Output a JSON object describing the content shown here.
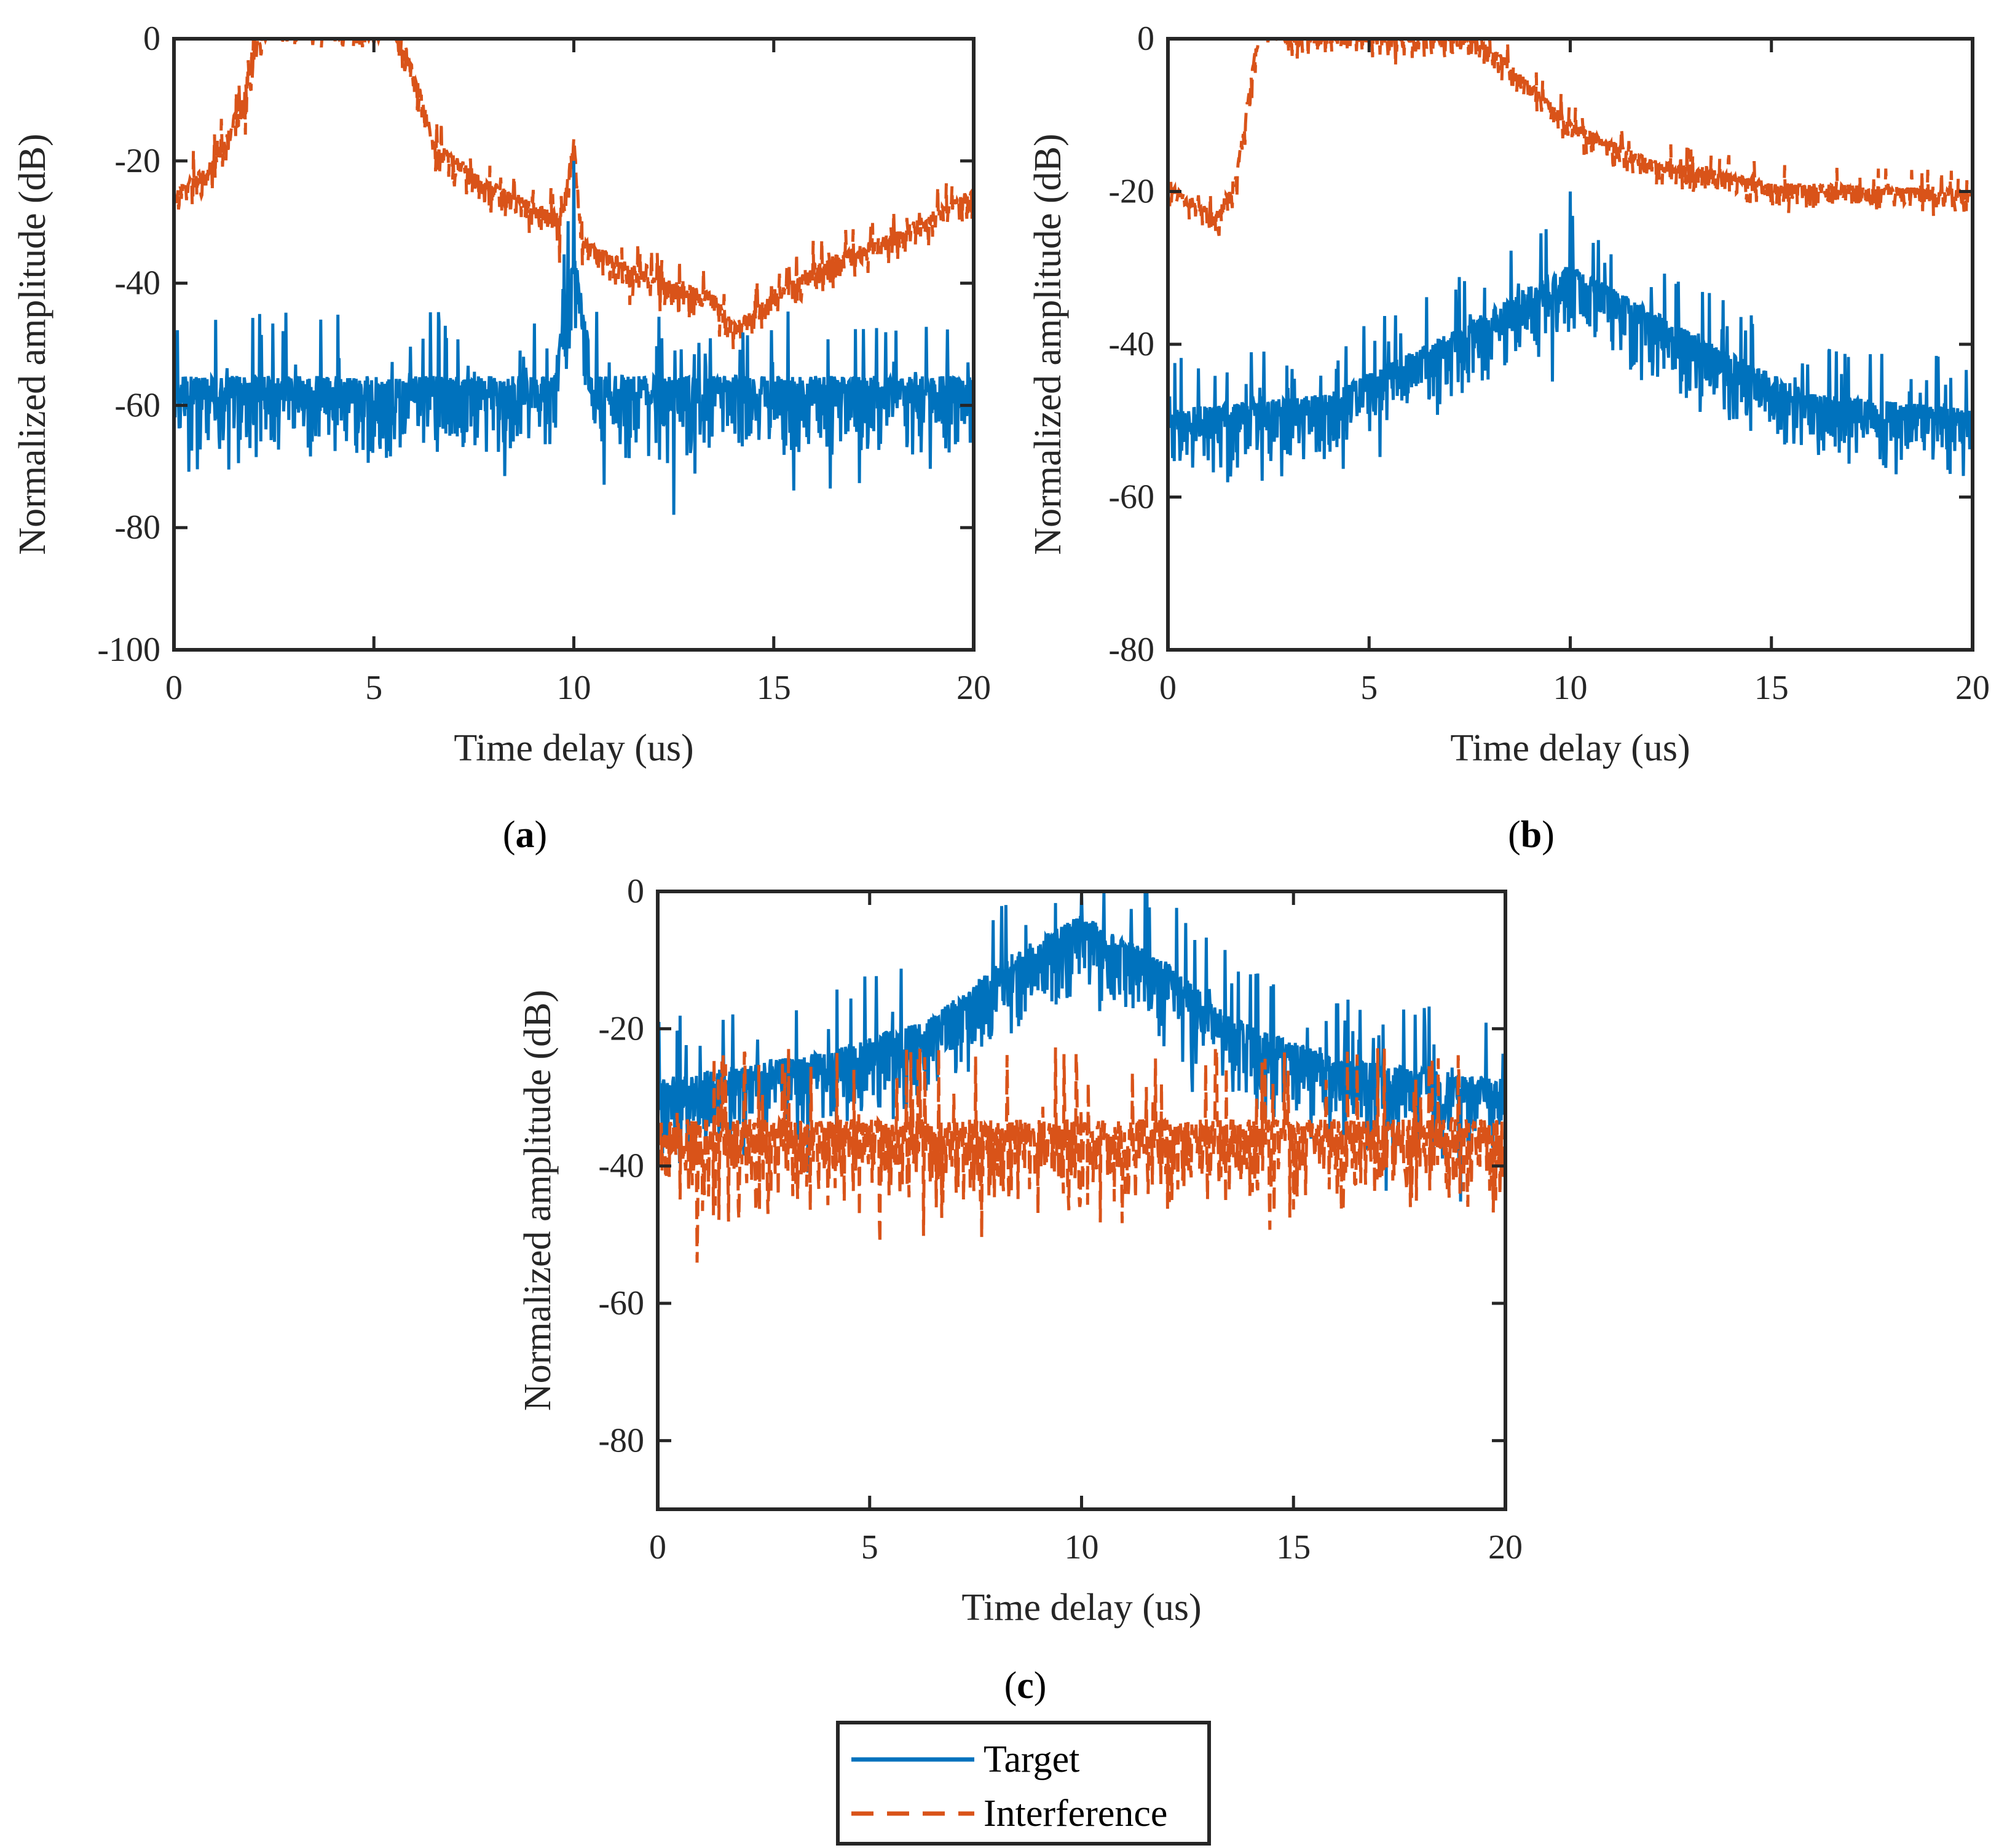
{
  "colors": {
    "target": "#0072BD",
    "interference": "#D95319",
    "axis": "#262626"
  },
  "legend": {
    "placement": "bottom-center",
    "entries": [
      {
        "label": "Target",
        "style": "solid",
        "color": "#0072BD"
      },
      {
        "label": "Interference",
        "style": "dashed",
        "color": "#D95319"
      }
    ]
  },
  "chart_data": [
    {
      "type": "line",
      "caption_open": "(",
      "caption": "a",
      "caption_close": ")",
      "xlabel": "Time delay (us)",
      "ylabel": "Normalized amplitude (dB)",
      "xlim": [
        0,
        20
      ],
      "ylim": [
        -100,
        0
      ],
      "xticks": [
        "0",
        "5",
        "10",
        "15",
        "20"
      ],
      "xtick_values": [
        0,
        5,
        10,
        15,
        20
      ],
      "yticks": [
        "0",
        "-20",
        "-40",
        "-60",
        "-80",
        "-100"
      ],
      "ytick_values": [
        0,
        -20,
        -40,
        -60,
        -80,
        -100
      ],
      "series": [
        {
          "name": "Interference",
          "noise_db": 6,
          "envelope": [
            [
              0,
              -30
            ],
            [
              1,
              -25
            ],
            [
              1.7,
              -15
            ],
            [
              2.3,
              -1
            ],
            [
              3,
              -2
            ],
            [
              5.5,
              -2
            ],
            [
              6,
              -10
            ],
            [
              6.5,
              -22
            ],
            [
              8,
              -29
            ],
            [
              9.7,
              -34
            ],
            [
              10,
              -21
            ],
            [
              10.2,
              -38
            ],
            [
              12,
              -44
            ],
            [
              13.5,
              -47
            ],
            [
              14,
              -52
            ],
            [
              16,
              -42
            ],
            [
              18,
              -37
            ],
            [
              20,
              -30
            ]
          ]
        },
        {
          "name": "Target",
          "noise_db": 16,
          "spike": [
            10,
            -20
          ],
          "envelope": [
            [
              0,
              -66
            ],
            [
              9.5,
              -66
            ],
            [
              10,
              -45
            ],
            [
              10.5,
              -66
            ],
            [
              20,
              -66
            ]
          ]
        }
      ]
    },
    {
      "type": "line",
      "caption_open": "(",
      "caption": "b",
      "caption_close": ")",
      "xlabel": "Time delay (us)",
      "ylabel": "Normalized amplitude (dB)",
      "xlim": [
        0,
        20
      ],
      "ylim": [
        -80,
        0
      ],
      "xticks": [
        "0",
        "5",
        "10",
        "15",
        "20"
      ],
      "xtick_values": [
        0,
        5,
        10,
        15,
        20
      ],
      "yticks": [
        "0",
        "-20",
        "-40",
        "-60",
        "-80"
      ],
      "ytick_values": [
        0,
        -20,
        -40,
        -60,
        -80
      ],
      "series": [
        {
          "name": "Interference",
          "noise_db": 4,
          "envelope": [
            [
              0,
              -23
            ],
            [
              1.2,
              -27
            ],
            [
              1.7,
              -22
            ],
            [
              2.3,
              -1
            ],
            [
              3,
              -3
            ],
            [
              7,
              -3
            ],
            [
              8,
              -5
            ],
            [
              9,
              -10
            ],
            [
              10,
              -15
            ],
            [
              12,
              -20
            ],
            [
              15,
              -23
            ],
            [
              20,
              -24
            ]
          ]
        },
        {
          "name": "Target",
          "noise_db": 10,
          "spike": [
            10,
            -20
          ],
          "envelope": [
            [
              0,
              -56
            ],
            [
              4,
              -54
            ],
            [
              7,
              -46
            ],
            [
              10,
              -37
            ],
            [
              13,
              -46
            ],
            [
              16,
              -54
            ],
            [
              20,
              -56
            ]
          ]
        }
      ]
    },
    {
      "type": "line",
      "caption_open": "(",
      "caption": "c",
      "caption_close": ")",
      "xlabel": "Time delay (us)",
      "ylabel": "Normalized amplitude (dB)",
      "xlim": [
        0,
        20
      ],
      "ylim": [
        -90,
        0
      ],
      "xticks": [
        "0",
        "5",
        "10",
        "15",
        "20"
      ],
      "xtick_values": [
        0,
        5,
        10,
        15,
        20
      ],
      "yticks": [
        "0",
        "-20",
        "-40",
        "-60",
        "-80"
      ],
      "ytick_values": [
        0,
        -20,
        -40,
        -60,
        -80
      ],
      "series": [
        {
          "name": "Target",
          "noise_db": 14,
          "spike": [
            10,
            0
          ],
          "envelope": [
            [
              0,
              -37
            ],
            [
              4,
              -33
            ],
            [
              6.5,
              -28
            ],
            [
              8,
              -20
            ],
            [
              10,
              -13
            ],
            [
              12,
              -20
            ],
            [
              13.5,
              -28
            ],
            [
              16,
              -34
            ],
            [
              20,
              -37
            ]
          ]
        },
        {
          "name": "Interference",
          "noise_db": 16,
          "envelope": [
            [
              0,
              -44
            ],
            [
              20,
              -44
            ]
          ]
        }
      ]
    }
  ]
}
